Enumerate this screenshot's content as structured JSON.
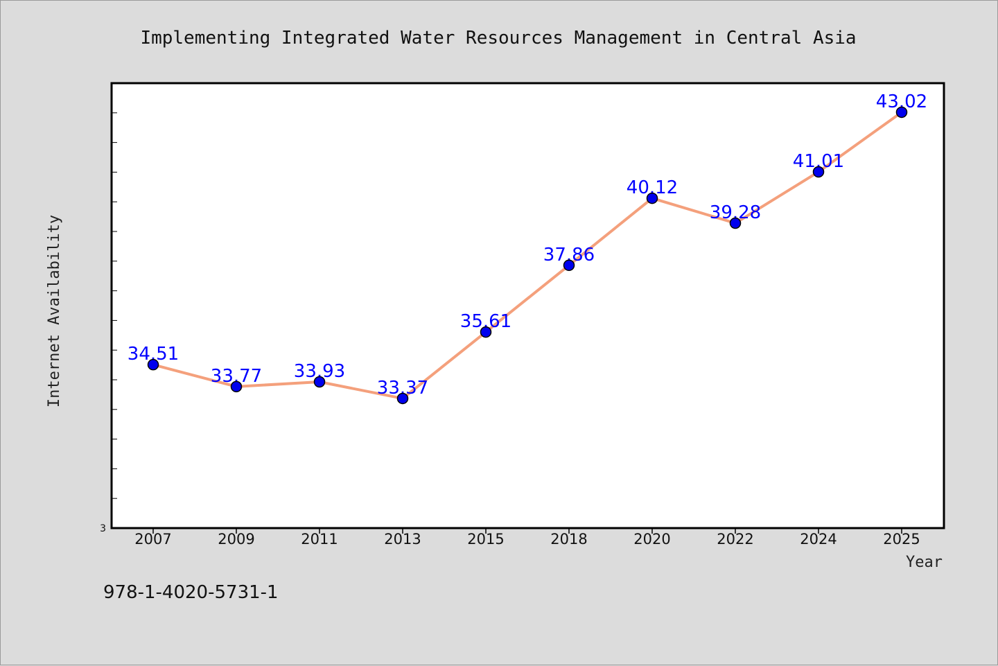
{
  "chart_data": {
    "type": "line",
    "title": "Implementing Integrated Water Resources Management in Central Asia",
    "xlabel": "Year",
    "ylabel": "Internet Availability",
    "categories": [
      "2007",
      "2009",
      "2011",
      "2013",
      "2015",
      "2018",
      "2020",
      "2022",
      "2024",
      "2025"
    ],
    "series": [
      {
        "values": [
          34.51,
          33.77,
          33.93,
          33.37,
          35.61,
          37.86,
          40.12,
          39.28,
          41.01,
          43.02
        ],
        "data_labels": [
          "34.51",
          "33.77",
          "33.93",
          "33.37",
          "35.61",
          "37.86",
          "40.12",
          "39.28",
          "41.01",
          "43.02"
        ],
        "line_color": "#f4a07c",
        "marker_color": "#0000ee",
        "label_color": "#0000ff"
      }
    ],
    "ylim": [
      29.0,
      44.0
    ],
    "y_tick_label": "3",
    "y_minor_ticks": 14,
    "grid": false,
    "legend": "none"
  },
  "footer": {
    "isbn": "978-1-4020-5731-1"
  },
  "colors": {
    "background": "#dcdcdc",
    "plot_background": "#ffffff",
    "axes": "#000000"
  }
}
